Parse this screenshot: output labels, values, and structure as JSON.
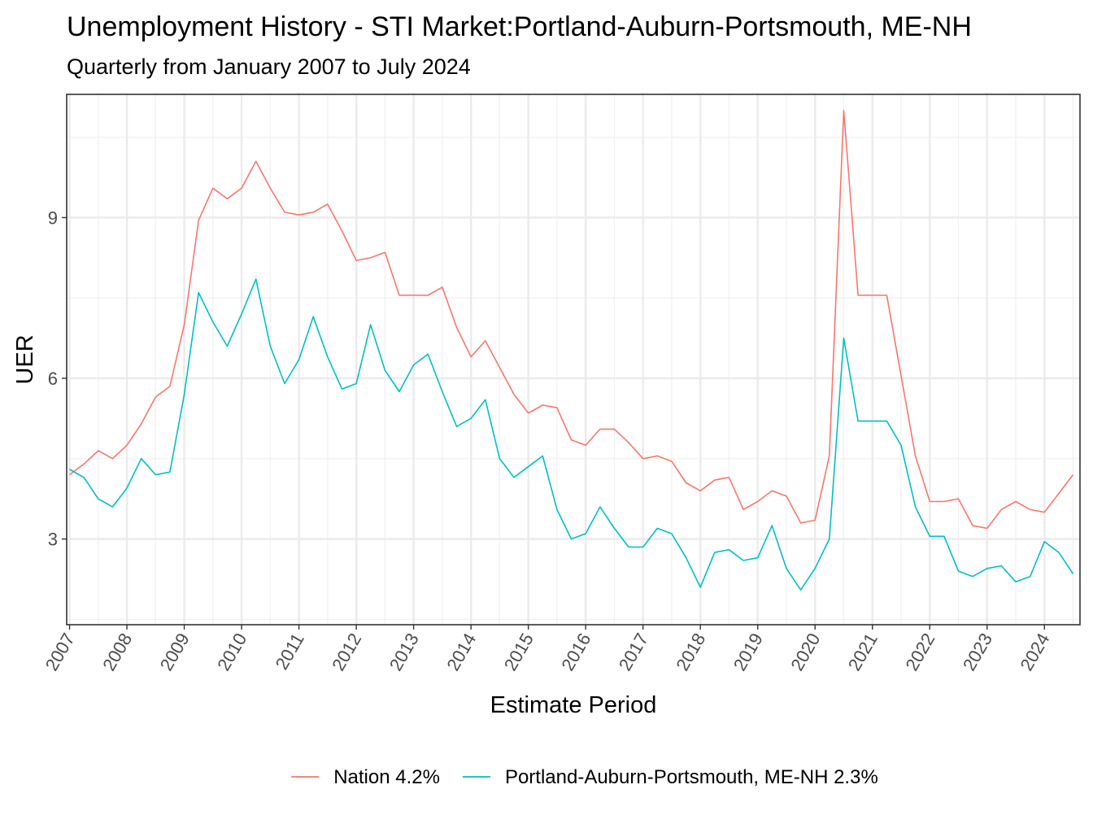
{
  "chart_data": {
    "type": "line",
    "title": "Unemployment History - STI Market:Portland-Auburn-Portsmouth, ME-NH",
    "subtitle": "Quarterly from January 2007 to July 2024",
    "xlabel": "Estimate Period",
    "ylabel": "UER",
    "xlim": [
      2006.95,
      2024.62
    ],
    "ylim": [
      1.4,
      11.3
    ],
    "x_ticks": [
      "2007",
      "2008",
      "2009",
      "2010",
      "2011",
      "2012",
      "2013",
      "2014",
      "2015",
      "2016",
      "2017",
      "2018",
      "2019",
      "2020",
      "2021",
      "2022",
      "2023",
      "2024"
    ],
    "y_ticks": [
      3,
      6,
      9
    ],
    "grid": true,
    "legend_position": "bottom",
    "series": [
      {
        "name": "Nation 4.2%",
        "color": "#F8766D",
        "x_start": 2007,
        "x_step": 0.25,
        "values": [
          4.2,
          4.4,
          4.65,
          4.5,
          4.75,
          5.15,
          5.65,
          5.85,
          7.0,
          8.95,
          9.55,
          9.35,
          9.55,
          10.05,
          9.55,
          9.1,
          9.05,
          9.1,
          9.25,
          8.75,
          8.2,
          8.25,
          8.35,
          7.55,
          7.55,
          7.55,
          7.7,
          6.95,
          6.4,
          6.7,
          6.2,
          5.7,
          5.35,
          5.5,
          5.45,
          4.85,
          4.75,
          5.05,
          5.05,
          4.8,
          4.5,
          4.55,
          4.45,
          4.05,
          3.9,
          4.1,
          4.15,
          3.55,
          3.7,
          3.9,
          3.8,
          3.3,
          3.35,
          4.55,
          11.0,
          7.55,
          7.55,
          7.55,
          6.05,
          4.55,
          3.7,
          3.7,
          3.75,
          3.25,
          3.2,
          3.55,
          3.7,
          3.55,
          3.5,
          3.85,
          4.2
        ]
      },
      {
        "name": "Portland-Auburn-Portsmouth, ME-NH 2.3%",
        "color": "#00BFC4",
        "x_start": 2007,
        "x_step": 0.25,
        "values": [
          4.3,
          4.15,
          3.75,
          3.6,
          3.95,
          4.5,
          4.2,
          4.25,
          5.7,
          7.6,
          7.05,
          6.6,
          7.2,
          7.85,
          6.6,
          5.9,
          6.35,
          7.15,
          6.4,
          5.8,
          5.9,
          7.0,
          6.15,
          5.75,
          6.25,
          6.45,
          5.75,
          5.1,
          5.25,
          5.6,
          4.5,
          4.15,
          4.35,
          4.55,
          3.55,
          3.0,
          3.1,
          3.6,
          3.2,
          2.85,
          2.85,
          3.2,
          3.1,
          2.65,
          2.1,
          2.75,
          2.8,
          2.6,
          2.65,
          3.25,
          2.45,
          2.05,
          2.45,
          3.0,
          6.75,
          5.2,
          5.2,
          5.2,
          4.75,
          3.6,
          3.05,
          3.05,
          2.4,
          2.3,
          2.45,
          2.5,
          2.2,
          2.3,
          2.95,
          2.75,
          2.35
        ]
      }
    ]
  }
}
